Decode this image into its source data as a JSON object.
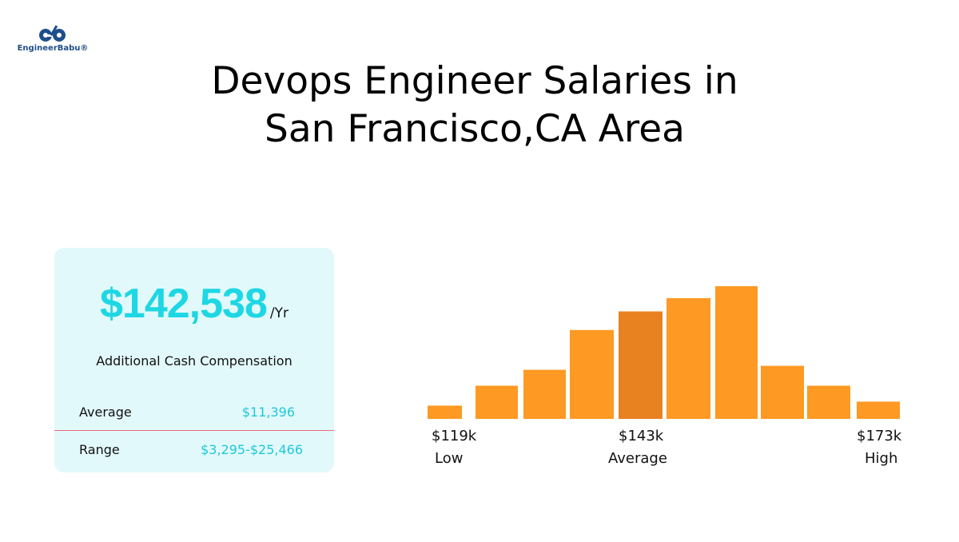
{
  "logo": {
    "text": "EngineerBabu®"
  },
  "title": {
    "line1": "Devops Engineer Salaries in",
    "line2": "San Francisco,CA Area"
  },
  "card": {
    "salary": "$142,538",
    "per": "/Yr",
    "additional_label": "Additional Cash Compensation",
    "rows": [
      {
        "label": "Average",
        "value": "$11,396"
      },
      {
        "label": "Range",
        "value": "$3,295-$25,466"
      }
    ]
  },
  "chart_data": {
    "type": "bar",
    "values": [
      10,
      25,
      37,
      67,
      81,
      91,
      100,
      40,
      25,
      13
    ],
    "highlight_index": 4,
    "colors": {
      "bar": "#fe9923",
      "highlight": "#e88220"
    },
    "tick_labels": [
      {
        "value": "$119k",
        "label": "Low"
      },
      {
        "value": "$143k",
        "label": "Average"
      },
      {
        "value": "$173k",
        "label": "High"
      }
    ]
  }
}
